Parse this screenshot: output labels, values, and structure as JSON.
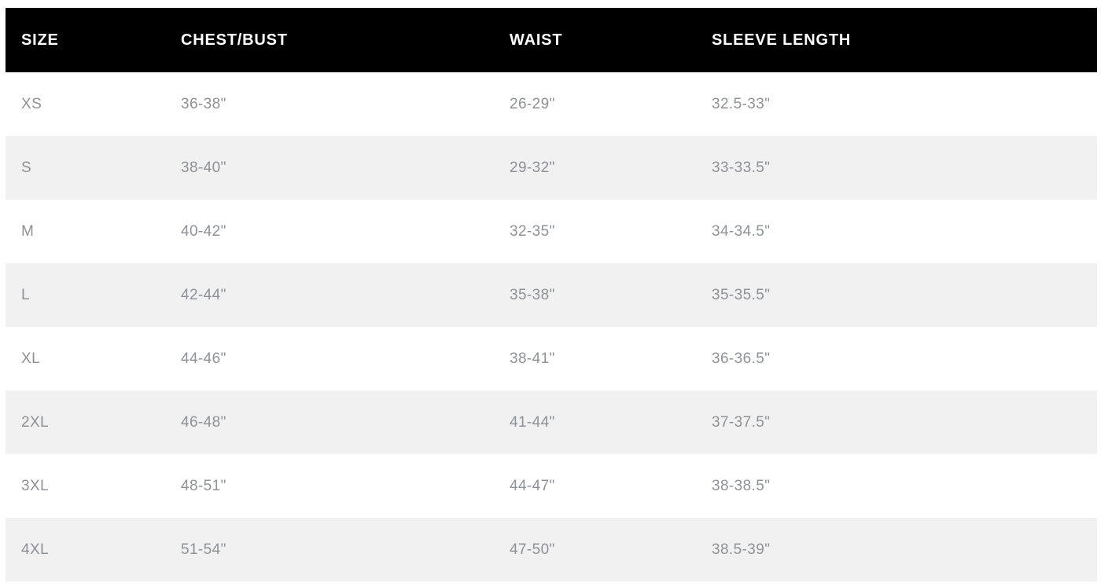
{
  "colors": {
    "header_bg": "#000000",
    "header_text": "#ffffff",
    "row_bg": "#ffffff",
    "row_alt_bg": "#f1f1f2",
    "body_text": "#8c9297"
  },
  "chart_data": {
    "type": "table",
    "columns": [
      "SIZE",
      "CHEST/BUST",
      "WAIST",
      "SLEEVE LENGTH"
    ],
    "rows": [
      [
        "XS",
        "36-38\"",
        "26-29\"",
        "32.5-33\""
      ],
      [
        "S",
        "38-40\"",
        "29-32\"",
        "33-33.5\""
      ],
      [
        "M",
        "40-42\"",
        "32-35\"",
        "34-34.5\""
      ],
      [
        "L",
        "42-44\"",
        "35-38\"",
        "35-35.5\""
      ],
      [
        "XL",
        "44-46\"",
        "38-41\"",
        "36-36.5\""
      ],
      [
        "2XL",
        "46-48\"",
        "41-44\"",
        "37-37.5\""
      ],
      [
        "3XL",
        "48-51\"",
        "44-47\"",
        "38-38.5\""
      ],
      [
        "4XL",
        "51-54\"",
        "47-50\"",
        "38.5-39\""
      ]
    ]
  }
}
